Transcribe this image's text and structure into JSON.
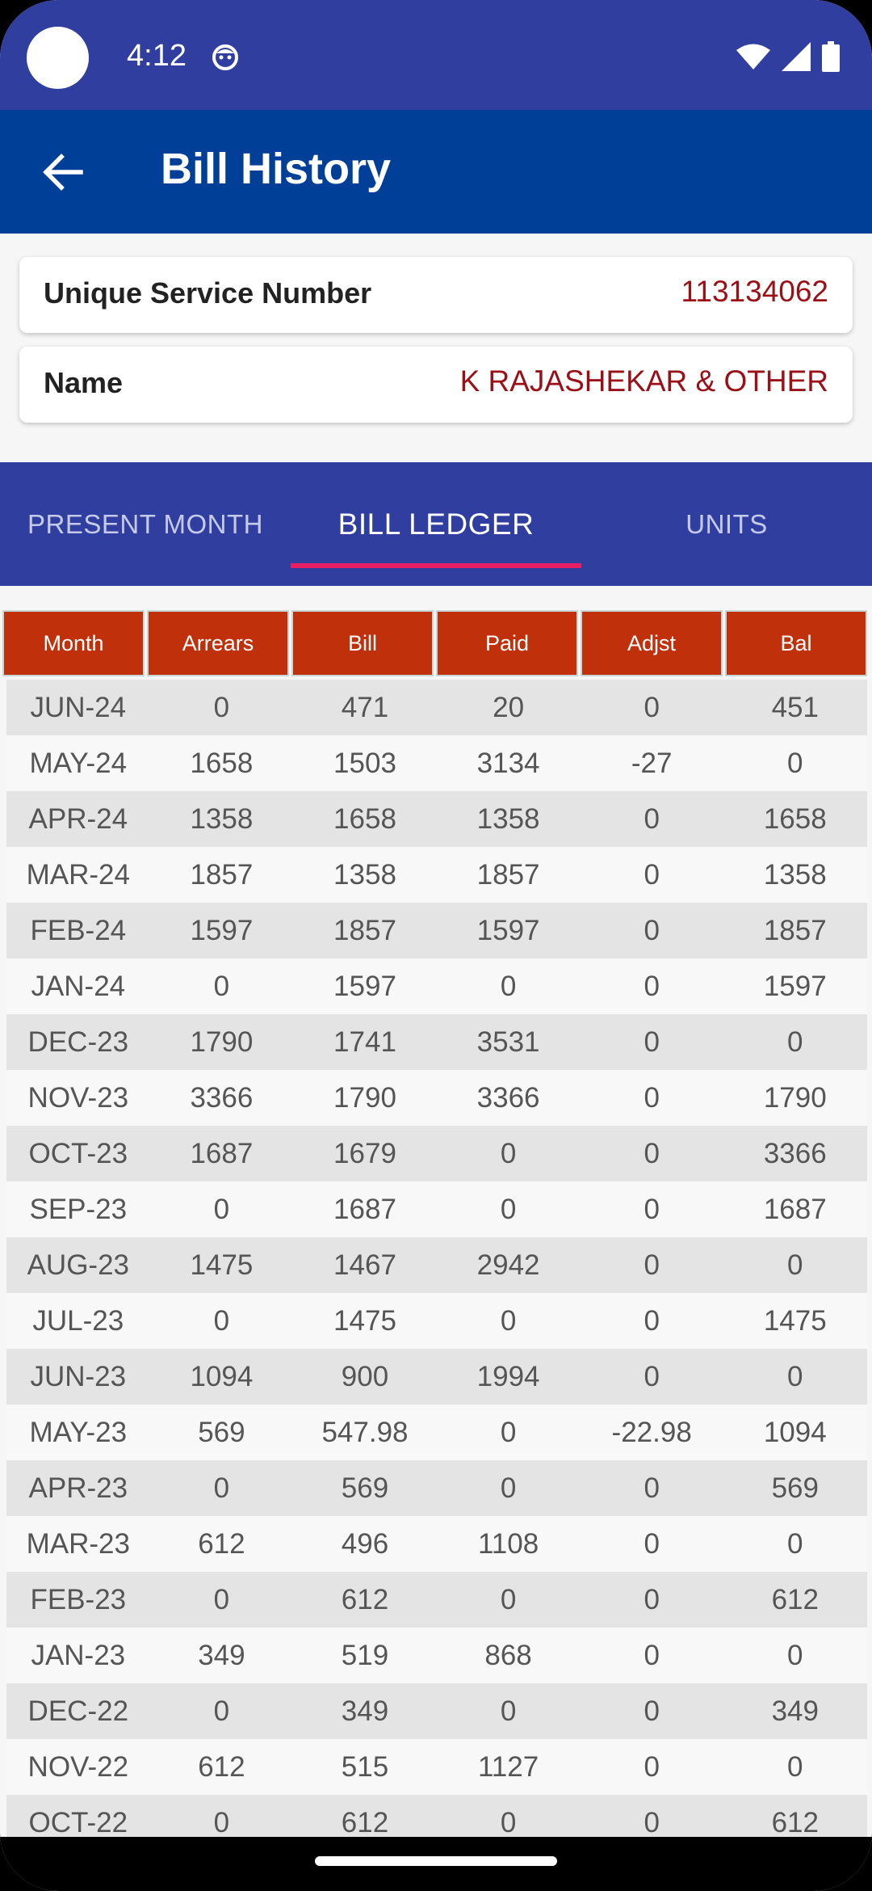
{
  "status_bar": {
    "time": "4:12"
  },
  "app_bar": {
    "title": "Bill History"
  },
  "info": {
    "service_label": "Unique Service Number",
    "service_value": "113134062",
    "name_label": "Name",
    "name_value": "K RAJASHEKAR & OTHER"
  },
  "tabs": [
    {
      "label": "PRESENT MONTH",
      "active": false
    },
    {
      "label": "BILL LEDGER",
      "active": true
    },
    {
      "label": "UNITS",
      "active": false
    }
  ],
  "ledger": {
    "columns": [
      "Month",
      "Arrears",
      "Bill",
      "Paid",
      "Adjst",
      "Bal"
    ],
    "rows": [
      [
        "JUN-24",
        "0",
        "471",
        "20",
        "0",
        "451"
      ],
      [
        "MAY-24",
        "1658",
        "1503",
        "3134",
        "-27",
        "0"
      ],
      [
        "APR-24",
        "1358",
        "1658",
        "1358",
        "0",
        "1658"
      ],
      [
        "MAR-24",
        "1857",
        "1358",
        "1857",
        "0",
        "1358"
      ],
      [
        "FEB-24",
        "1597",
        "1857",
        "1597",
        "0",
        "1857"
      ],
      [
        "JAN-24",
        "0",
        "1597",
        "0",
        "0",
        "1597"
      ],
      [
        "DEC-23",
        "1790",
        "1741",
        "3531",
        "0",
        "0"
      ],
      [
        "NOV-23",
        "3366",
        "1790",
        "3366",
        "0",
        "1790"
      ],
      [
        "OCT-23",
        "1687",
        "1679",
        "0",
        "0",
        "3366"
      ],
      [
        "SEP-23",
        "0",
        "1687",
        "0",
        "0",
        "1687"
      ],
      [
        "AUG-23",
        "1475",
        "1467",
        "2942",
        "0",
        "0"
      ],
      [
        "JUL-23",
        "0",
        "1475",
        "0",
        "0",
        "1475"
      ],
      [
        "JUN-23",
        "1094",
        "900",
        "1994",
        "0",
        "0"
      ],
      [
        "MAY-23",
        "569",
        "547.98",
        "0",
        "-22.98",
        "1094"
      ],
      [
        "APR-23",
        "0",
        "569",
        "0",
        "0",
        "569"
      ],
      [
        "MAR-23",
        "612",
        "496",
        "1108",
        "0",
        "0"
      ],
      [
        "FEB-23",
        "0",
        "612",
        "0",
        "0",
        "612"
      ],
      [
        "JAN-23",
        "349",
        "519",
        "868",
        "0",
        "0"
      ],
      [
        "DEC-22",
        "0",
        "349",
        "0",
        "0",
        "349"
      ],
      [
        "NOV-22",
        "612",
        "515",
        "1127",
        "0",
        "0"
      ],
      [
        "OCT-22",
        "0",
        "612",
        "0",
        "0",
        "612"
      ]
    ]
  },
  "colors": {
    "status_bar": "#303f9f",
    "app_bar": "#003f98",
    "tab_indicator": "#e91e63",
    "header_cell": "#c0300a",
    "value_text": "#9b0f16"
  }
}
